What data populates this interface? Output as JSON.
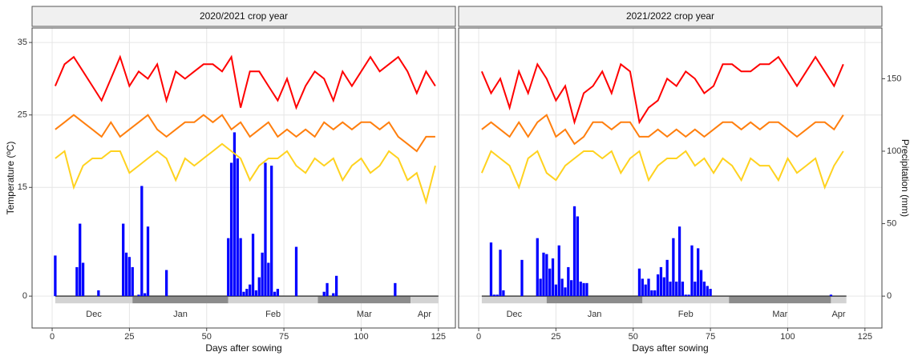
{
  "chart_data": [
    {
      "type": "line",
      "title": "2020/2021 crop year",
      "xlabel": "Days after sowing",
      "ylabel": "Temperature (ºC)",
      "xlim": [
        -6.5,
        130.5
      ],
      "xticks": [
        0,
        25,
        50,
        75,
        100,
        125
      ],
      "ylim": [
        -4.4,
        37
      ],
      "yticks": [
        0,
        15,
        25,
        35
      ],
      "y2lim": [
        -22,
        185
      ],
      "grid": true,
      "x": [
        1,
        4,
        7,
        10,
        13,
        16,
        19,
        22,
        25,
        28,
        31,
        34,
        37,
        40,
        43,
        46,
        49,
        52,
        55,
        58,
        61,
        64,
        67,
        70,
        73,
        76,
        79,
        82,
        85,
        88,
        91,
        94,
        97,
        100,
        103,
        106,
        109,
        112,
        115,
        118,
        121,
        124
      ],
      "series": [
        {
          "color": "#ff0000",
          "values": [
            29,
            32,
            33,
            31,
            29,
            27,
            30,
            33,
            29,
            31,
            30,
            32,
            27,
            31,
            30,
            31,
            32,
            32,
            31,
            33,
            26,
            31,
            31,
            29,
            27,
            30,
            26,
            29,
            31,
            30,
            27,
            31,
            29,
            31,
            33,
            31,
            32,
            33,
            31,
            28,
            31,
            29
          ]
        },
        {
          "color": "#ff7f0e",
          "values": [
            23,
            24,
            25,
            24,
            23,
            22,
            24,
            22,
            23,
            24,
            25,
            23,
            22,
            23,
            24,
            24,
            25,
            24,
            25,
            23,
            24,
            22,
            23,
            24,
            22,
            23,
            22,
            23,
            22,
            24,
            23,
            24,
            23,
            24,
            24,
            23,
            24,
            22,
            21,
            20,
            22,
            22
          ]
        },
        {
          "color": "#ffd21f",
          "values": [
            19,
            20,
            15,
            18,
            19,
            19,
            20,
            20,
            17,
            18,
            19,
            20,
            19,
            16,
            19,
            18,
            19,
            20,
            21,
            20,
            19,
            16,
            18,
            19,
            19,
            20,
            18,
            17,
            19,
            18,
            19,
            16,
            18,
            19,
            17,
            18,
            20,
            19,
            16,
            17,
            13,
            18
          ]
        }
      ],
      "bars": {
        "color": "#0000ff",
        "axis": "y2",
        "x": [
          1,
          8,
          9,
          10,
          15,
          23,
          24,
          25,
          26,
          28,
          29,
          30,
          31,
          37,
          57,
          58,
          59,
          60,
          61,
          62,
          63,
          64,
          65,
          66,
          67,
          68,
          69,
          70,
          71,
          72,
          73,
          79,
          88,
          89,
          91,
          92,
          111
        ],
        "values": [
          28,
          20,
          50,
          23,
          4,
          50,
          30,
          27,
          20,
          1,
          76,
          2,
          48,
          18,
          40,
          92,
          113,
          95,
          40,
          3,
          5,
          8,
          43,
          4,
          13,
          30,
          92,
          23,
          90,
          3,
          5,
          34,
          3,
          9,
          2,
          14,
          9
        ]
      },
      "months": [
        {
          "label": "Dec",
          "start": 1,
          "end": 26,
          "shade": "#d3d3d3"
        },
        {
          "label": "Jan",
          "start": 26,
          "end": 57,
          "shade": "#8c8c8c"
        },
        {
          "label": "Feb",
          "start": 57,
          "end": 86,
          "shade": "#d3d3d3"
        },
        {
          "label": "Mar",
          "start": 86,
          "end": 116,
          "shade": "#8c8c8c"
        },
        {
          "label": "Apr",
          "start": 116,
          "end": 125,
          "shade": "#d3d3d3"
        }
      ]
    },
    {
      "type": "line",
      "title": "2021/2022 crop year",
      "xlabel": "Days after sowing",
      "y2label": "Precipitation (mm)",
      "xlim": [
        -6.5,
        130.5
      ],
      "xticks": [
        0,
        25,
        50,
        75,
        100,
        125
      ],
      "ylim": [
        -4.4,
        37
      ],
      "y2lim": [
        -22,
        185
      ],
      "y2ticks": [
        0,
        50,
        100,
        150
      ],
      "grid": true,
      "x": [
        1,
        4,
        7,
        10,
        13,
        16,
        19,
        22,
        25,
        28,
        31,
        34,
        37,
        40,
        43,
        46,
        49,
        52,
        55,
        58,
        61,
        64,
        67,
        70,
        73,
        76,
        79,
        82,
        85,
        88,
        91,
        94,
        97,
        100,
        103,
        106,
        109,
        112,
        115,
        118
      ],
      "series": [
        {
          "color": "#ff0000",
          "values": [
            31,
            28,
            30,
            26,
            31,
            28,
            32,
            30,
            27,
            29,
            24,
            28,
            29,
            31,
            28,
            32,
            31,
            24,
            26,
            27,
            30,
            29,
            31,
            30,
            28,
            29,
            32,
            32,
            31,
            31,
            32,
            32,
            33,
            31,
            29,
            31,
            33,
            31,
            29,
            32
          ]
        },
        {
          "color": "#ff7f0e",
          "values": [
            23,
            24,
            23,
            22,
            24,
            22,
            24,
            25,
            22,
            23,
            21,
            22,
            24,
            24,
            23,
            24,
            24,
            22,
            22,
            23,
            22,
            23,
            22,
            23,
            22,
            23,
            24,
            24,
            23,
            24,
            23,
            24,
            24,
            23,
            22,
            23,
            24,
            24,
            23,
            25
          ]
        },
        {
          "color": "#ffd21f",
          "values": [
            17,
            20,
            19,
            18,
            15,
            19,
            20,
            17,
            16,
            18,
            19,
            20,
            20,
            19,
            20,
            17,
            19,
            20,
            16,
            18,
            19,
            19,
            20,
            18,
            19,
            17,
            19,
            18,
            16,
            19,
            18,
            18,
            16,
            19,
            17,
            18,
            19,
            15,
            18,
            20
          ]
        }
      ],
      "bars": {
        "color": "#0000ff",
        "axis": "y2",
        "x": [
          4,
          5,
          6,
          7,
          8,
          14,
          19,
          20,
          21,
          22,
          23,
          24,
          25,
          26,
          27,
          28,
          29,
          30,
          31,
          32,
          33,
          34,
          35,
          52,
          53,
          54,
          55,
          56,
          57,
          58,
          59,
          60,
          61,
          62,
          63,
          64,
          65,
          66,
          67,
          68,
          69,
          70,
          71,
          72,
          73,
          74,
          75,
          114
        ],
        "values": [
          37,
          1,
          1,
          32,
          4,
          25,
          40,
          12,
          30,
          29,
          19,
          26,
          8,
          35,
          12,
          6,
          20,
          11,
          62,
          55,
          10,
          9,
          9,
          19,
          12,
          8,
          12,
          4,
          4,
          15,
          20,
          13,
          25,
          10,
          40,
          10,
          48,
          10,
          1,
          1,
          35,
          10,
          33,
          18,
          10,
          7,
          5,
          1
        ]
      },
      "months": [
        {
          "label": "Dec",
          "start": 1,
          "end": 22,
          "shade": "#d3d3d3"
        },
        {
          "label": "Jan",
          "start": 22,
          "end": 53,
          "shade": "#8c8c8c"
        },
        {
          "label": "Feb",
          "start": 53,
          "end": 81,
          "shade": "#d3d3d3"
        },
        {
          "label": "Mar",
          "start": 81,
          "end": 114,
          "shade": "#8c8c8c"
        },
        {
          "label": "Apr",
          "start": 114,
          "end": 119,
          "shade": "#d3d3d3"
        }
      ]
    }
  ]
}
